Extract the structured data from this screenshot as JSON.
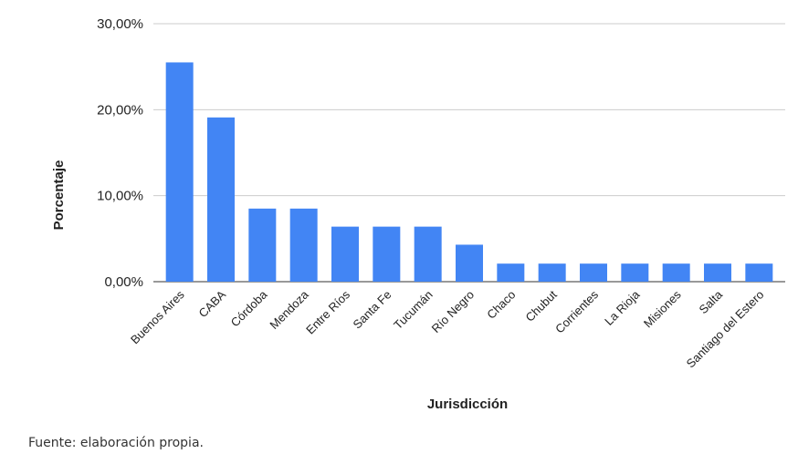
{
  "chart_data": {
    "type": "bar",
    "title": "",
    "xlabel": "Jurisdicción",
    "ylabel": "Porcentaje",
    "ylim": [
      0,
      30
    ],
    "yticks": [
      0,
      10,
      20,
      30
    ],
    "ytick_labels": [
      "0,00%",
      "10,00%",
      "20,00%",
      "30,00%"
    ],
    "grid": true,
    "bar_color": "#4285f4",
    "categories": [
      "Buenos Aires",
      "CABA",
      "Córdoba",
      "Mendoza",
      "Entre Ríos",
      "Santa Fe",
      "Tucumán",
      "Río Negro",
      "Chaco",
      "Chubut",
      "Corrientes",
      "La Rioja",
      "Misiones",
      "Salta",
      "Santiago del Estero"
    ],
    "values": [
      25.5,
      19.1,
      8.5,
      8.5,
      6.4,
      6.4,
      6.4,
      4.3,
      2.1,
      2.1,
      2.1,
      2.1,
      2.1,
      2.1,
      2.1
    ]
  },
  "caption": "Fuente: elaboración propia."
}
